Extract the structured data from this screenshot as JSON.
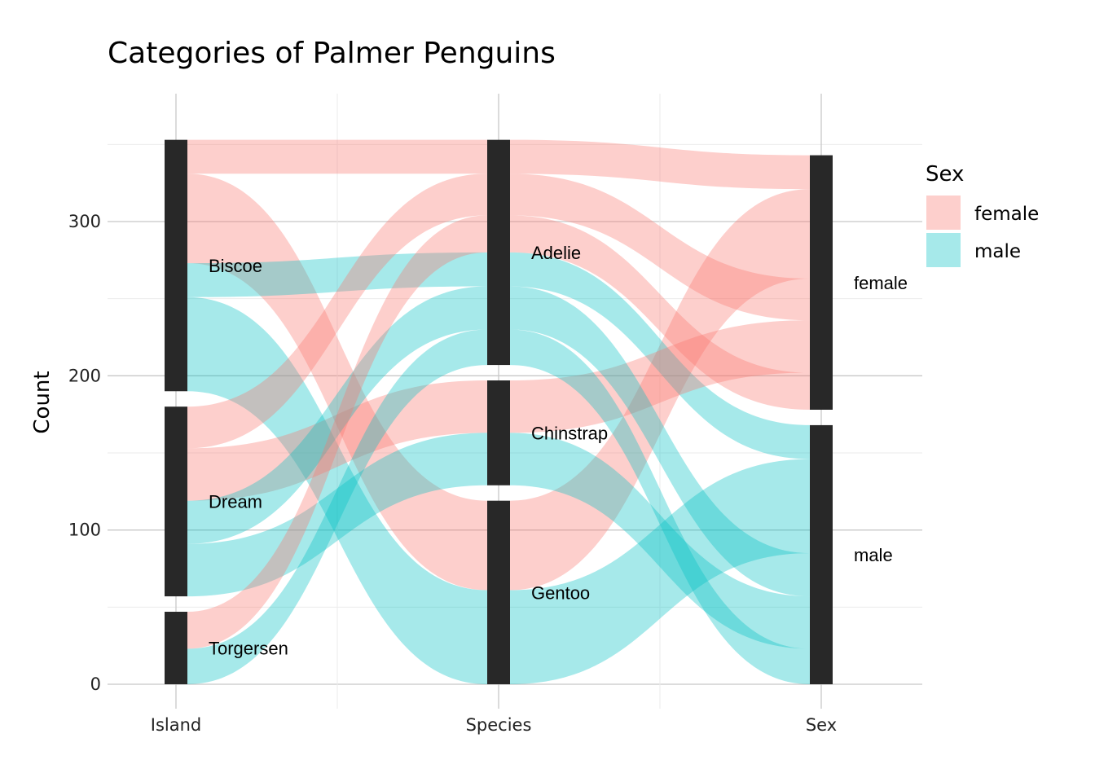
{
  "chart_data": {
    "type": "alluvial",
    "title": "Categories of Palmer Penguins",
    "ylabel": "Count",
    "xlabel": "",
    "axes": [
      "Island",
      "Species",
      "Sex"
    ],
    "ylim": [
      0,
      367
    ],
    "yticks": [
      0,
      100,
      200,
      300
    ],
    "grid": true,
    "legend": {
      "title": "Sex",
      "position": "right",
      "entries": [
        {
          "label": "female",
          "color": "#F8766D"
        },
        {
          "label": "male",
          "color": "#00BFC4"
        }
      ]
    },
    "strata": {
      "Island": [
        {
          "label": "Biscoe",
          "count": 163
        },
        {
          "label": "Dream",
          "count": 123
        },
        {
          "label": "Torgersen",
          "count": 47
        }
      ],
      "Species": [
        {
          "label": "Adelie",
          "count": 146
        },
        {
          "label": "Chinstrap",
          "count": 68
        },
        {
          "label": "Gentoo",
          "count": 119
        }
      ],
      "Sex": [
        {
          "label": "female",
          "count": 165
        },
        {
          "label": "male",
          "count": 168
        }
      ]
    },
    "flows": [
      {
        "island": "Biscoe",
        "species": "Adelie",
        "sex": "female",
        "count": 22
      },
      {
        "island": "Biscoe",
        "species": "Gentoo",
        "sex": "female",
        "count": 58
      },
      {
        "island": "Biscoe",
        "species": "Adelie",
        "sex": "male",
        "count": 22
      },
      {
        "island": "Biscoe",
        "species": "Gentoo",
        "sex": "male",
        "count": 61
      },
      {
        "island": "Dream",
        "species": "Adelie",
        "sex": "female",
        "count": 27
      },
      {
        "island": "Dream",
        "species": "Chinstrap",
        "sex": "female",
        "count": 34
      },
      {
        "island": "Dream",
        "species": "Adelie",
        "sex": "male",
        "count": 28
      },
      {
        "island": "Dream",
        "species": "Chinstrap",
        "sex": "male",
        "count": 34
      },
      {
        "island": "Torgersen",
        "species": "Adelie",
        "sex": "female",
        "count": 24
      },
      {
        "island": "Torgersen",
        "species": "Adelie",
        "sex": "male",
        "count": 23
      }
    ]
  }
}
